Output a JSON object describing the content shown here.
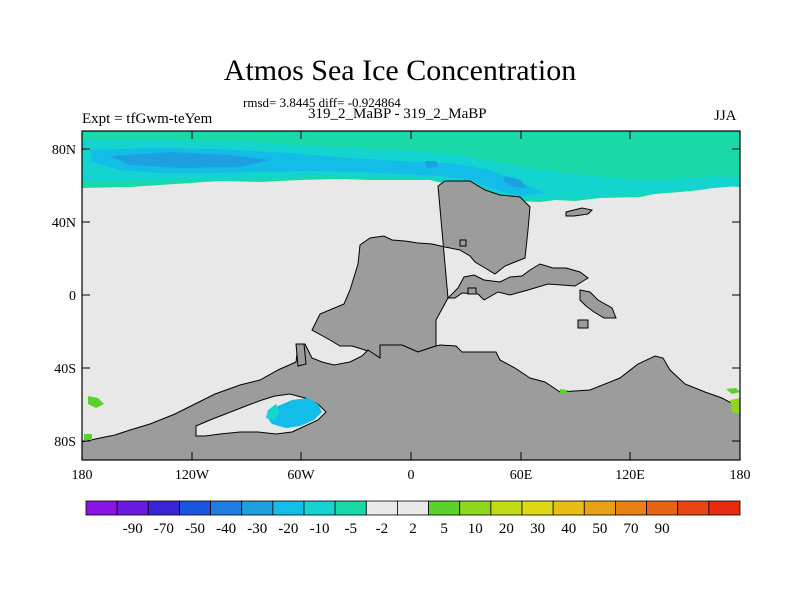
{
  "title": "Atmos Sea Ice Concentration",
  "stats_line": "rmsd= 3.8445 diff= -0.924864",
  "expt_label": "Expt = tfGwm-teYem",
  "runs_label": "319_2_MaBP - 319_2_MaBP",
  "season": "JJA",
  "lat_ticks": [
    "80N",
    "40N",
    "0",
    "40S",
    "80S"
  ],
  "lon_ticks": [
    "180",
    "120W",
    "60W",
    "0",
    "60E",
    "120E",
    "180"
  ],
  "colorbar": {
    "colors": [
      "#8a14e6",
      "#6a1ae0",
      "#3a24d9",
      "#1a55e0",
      "#1f7ce0",
      "#1ea0e0",
      "#12bde8",
      "#14d4cf",
      "#1ad9a8",
      "#e8e8e8",
      "#e8e8e8",
      "#5ad22b",
      "#8fd61e",
      "#c1dc14",
      "#dfd915",
      "#e8bd14",
      "#e8a014",
      "#e88014",
      "#e86414",
      "#e84414",
      "#e82a10"
    ],
    "labels": [
      "-90",
      "-70",
      "-50",
      "-40",
      "-30",
      "-20",
      "-10",
      "-5",
      "-2",
      "2",
      "5",
      "10",
      "20",
      "30",
      "40",
      "50",
      "70",
      "90"
    ]
  },
  "colors": {
    "land": "#9c9c9c",
    "background": "#e8e8e8",
    "outline": "#000000"
  }
}
